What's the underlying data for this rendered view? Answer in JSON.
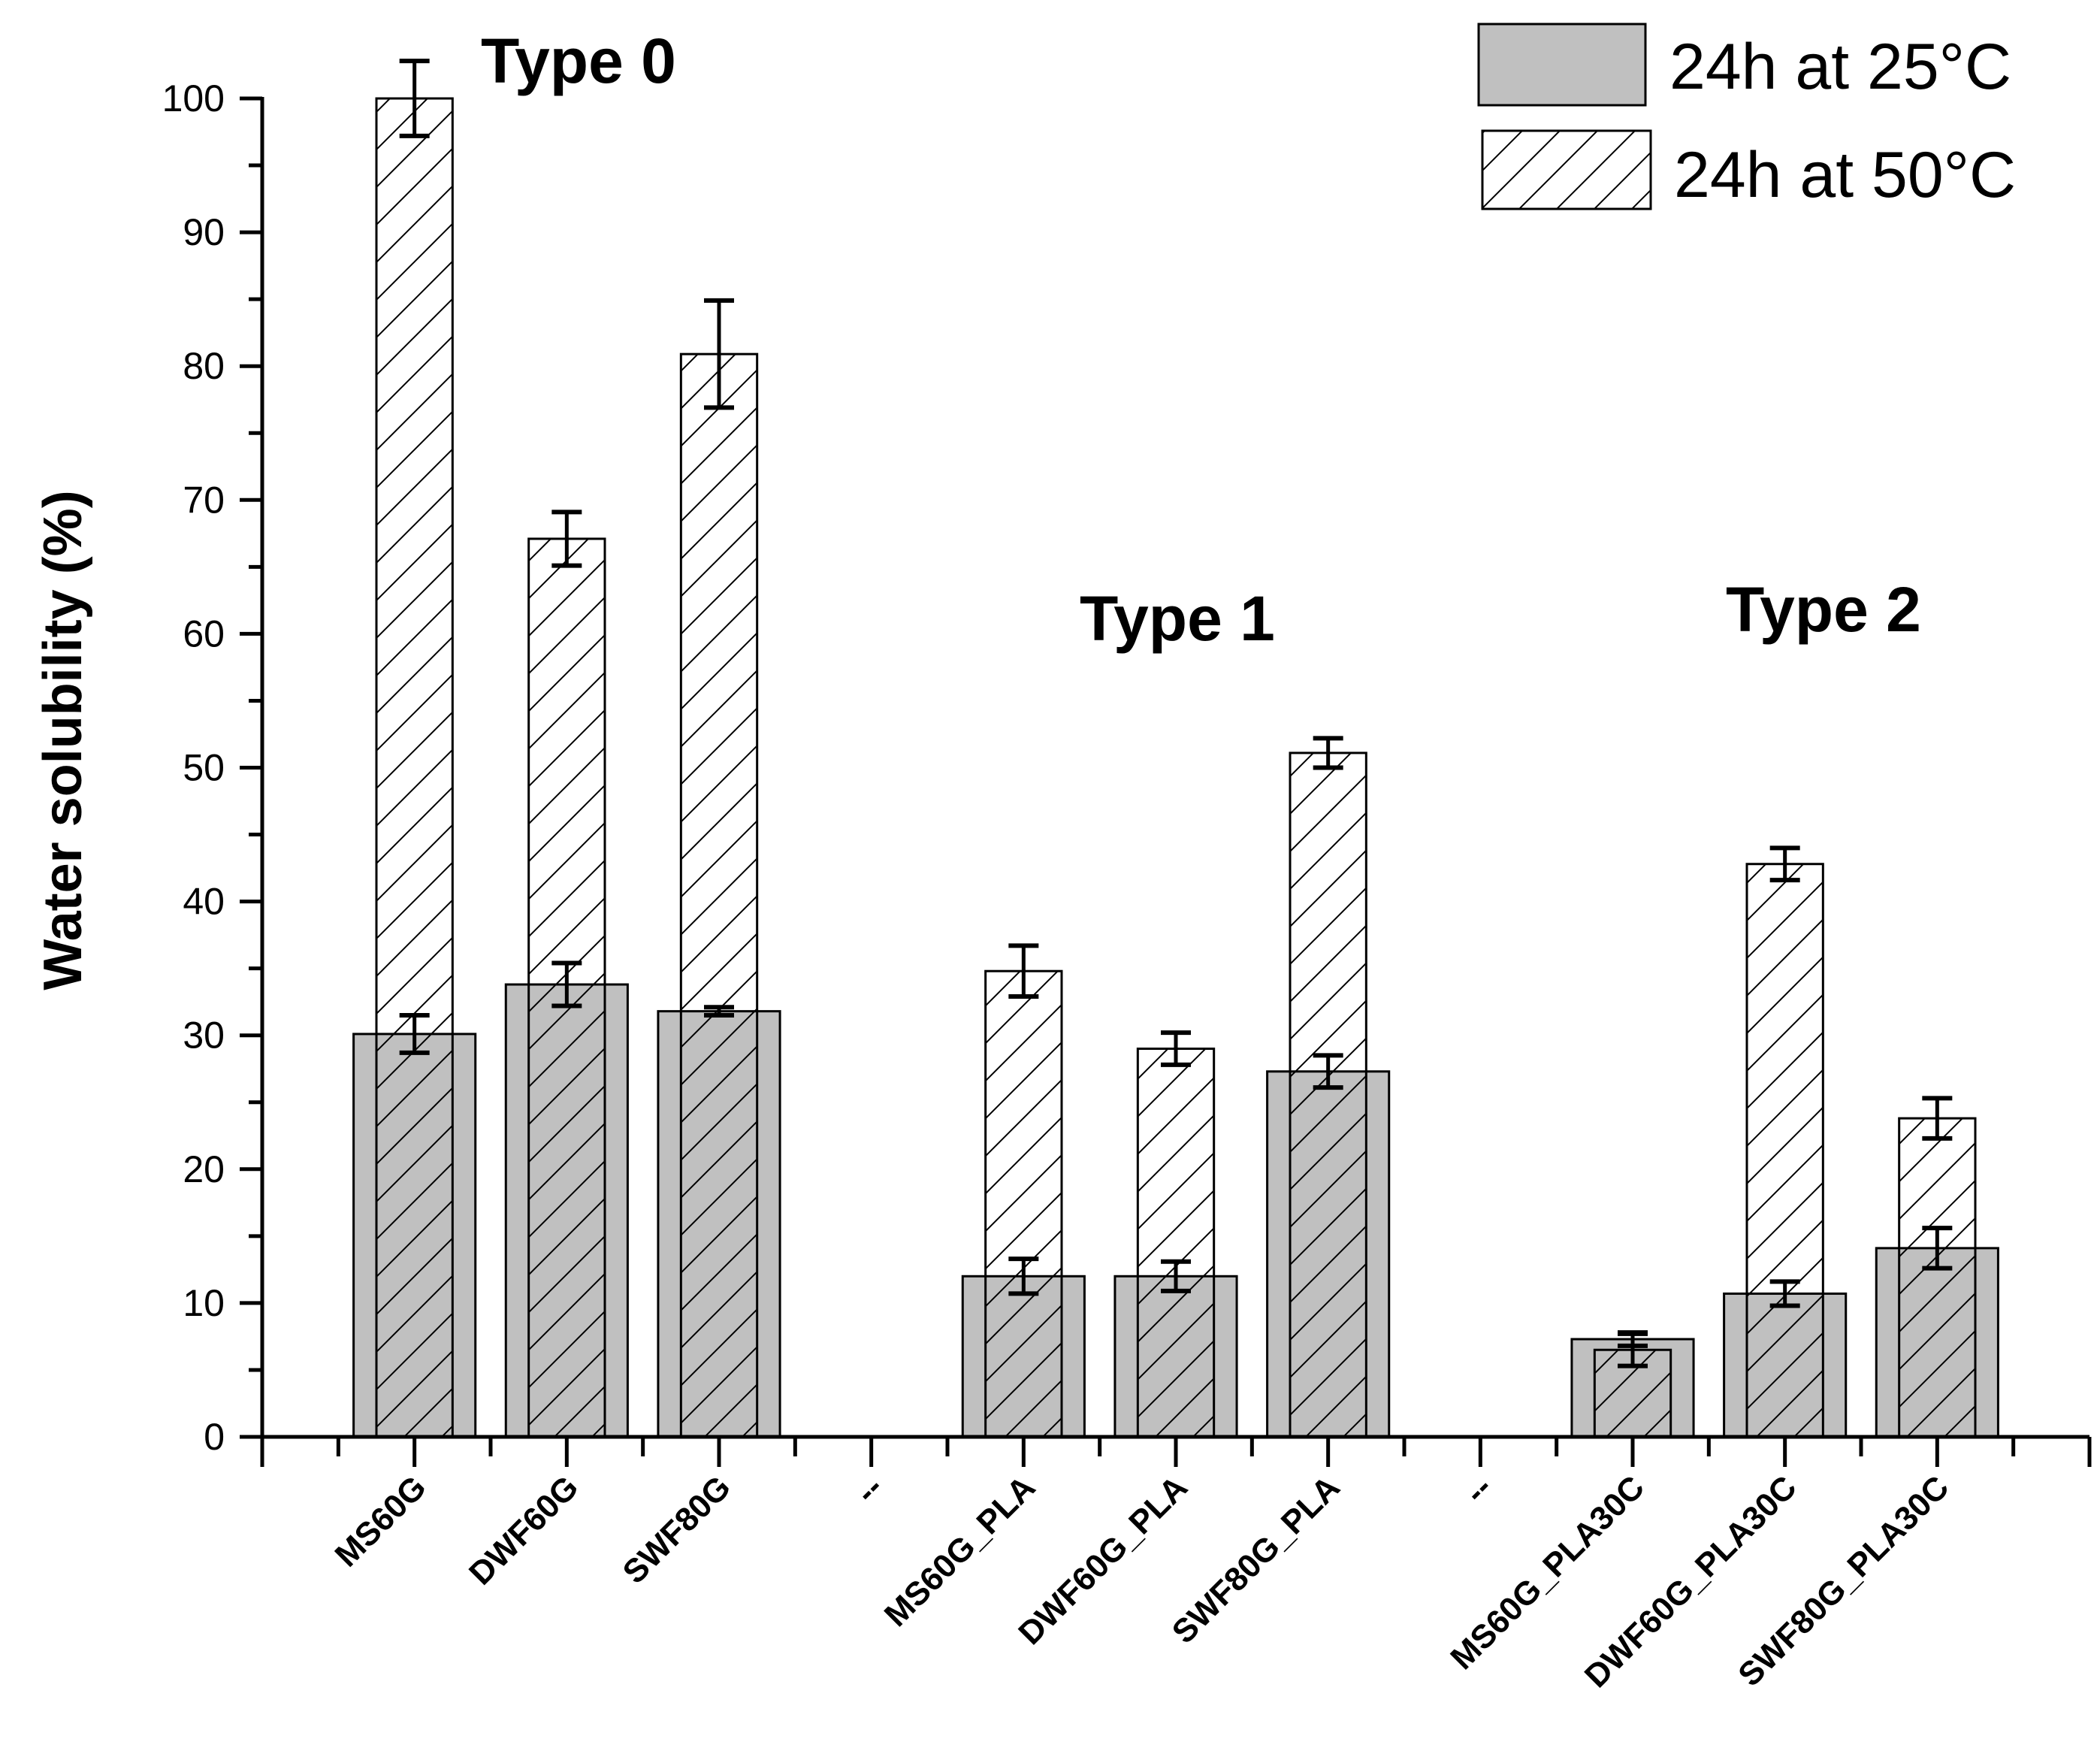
{
  "chart_data": {
    "type": "bar",
    "title": "",
    "xlabel": "",
    "ylabel": "Water solubility (%)",
    "ylim": [
      0,
      100
    ],
    "yticks": [
      0,
      10,
      20,
      30,
      40,
      50,
      60,
      70,
      80,
      90,
      100
    ],
    "xlim": [
      0,
      12
    ],
    "grid": false,
    "legend_position": "top-right",
    "categories": [
      "MS60G",
      "DWF60G",
      "SWF80G",
      "--",
      "MS60G_PLA",
      "DWF60G_PLA",
      "SWF80G_PLA",
      "--",
      "MS60G_PLA30C",
      "DWF60G_PLA30C",
      "SWF80G_PLA30C"
    ],
    "group_labels": [
      {
        "text": "Type 0",
        "group": "Type 0"
      },
      {
        "text": "Type 1",
        "group": "Type 1"
      },
      {
        "text": "Type 2",
        "group": "Type 2"
      }
    ],
    "series": [
      {
        "name": "24h at 25°C",
        "fill": "#c0c0c0",
        "pattern": "solid",
        "values": [
          30.1,
          33.8,
          31.8,
          null,
          12.0,
          12.0,
          27.3,
          null,
          7.3,
          10.7,
          14.1
        ],
        "errors": [
          1.4,
          1.6,
          0.3,
          null,
          1.3,
          1.1,
          1.2,
          null,
          0.5,
          0.9,
          1.5
        ]
      },
      {
        "name": "24h at 50°C",
        "fill": "#ffffff",
        "pattern": "diagonal-hatch",
        "values": [
          100.0,
          67.1,
          80.9,
          null,
          34.8,
          29.0,
          51.1,
          null,
          6.5,
          42.8,
          23.8
        ],
        "errors": [
          2.8,
          2.0,
          4.0,
          null,
          1.9,
          1.2,
          1.1,
          null,
          1.2,
          1.2,
          1.5
        ]
      }
    ]
  }
}
